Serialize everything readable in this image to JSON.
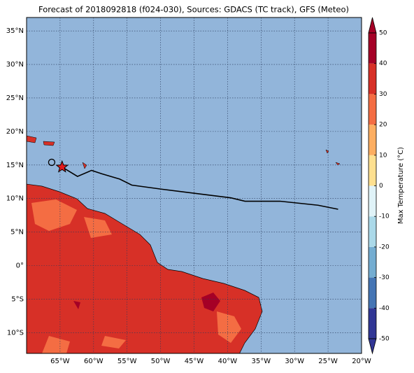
{
  "title": "Forecast of 2018092818 (f024-030), Sources: GDACS (TC track), GFS (Meteo)",
  "map": {
    "xlim": [
      -70,
      -20
    ],
    "ylim": [
      -13.1,
      37
    ],
    "xticks": [
      {
        "value": -65,
        "label": "65°W"
      },
      {
        "value": -60,
        "label": "60°W"
      },
      {
        "value": -55,
        "label": "55°W"
      },
      {
        "value": -50,
        "label": "50°W"
      },
      {
        "value": -45,
        "label": "45°W"
      },
      {
        "value": -40,
        "label": "40°W"
      },
      {
        "value": -35,
        "label": "35°W"
      },
      {
        "value": -30,
        "label": "30°W"
      },
      {
        "value": -25,
        "label": "25°W"
      },
      {
        "value": -20,
        "label": "20°W"
      }
    ],
    "yticks": [
      {
        "value": -10,
        "label": "10°S"
      },
      {
        "value": -5,
        "label": "5°S"
      },
      {
        "value": 0,
        "label": "0°"
      },
      {
        "value": 5,
        "label": "5°N"
      },
      {
        "value": 10,
        "label": "10°N"
      },
      {
        "value": 15,
        "label": "15°N"
      },
      {
        "value": 20,
        "label": "20°N"
      },
      {
        "value": 25,
        "label": "25°N"
      },
      {
        "value": 30,
        "label": "30°N"
      },
      {
        "value": 35,
        "label": "35°N"
      }
    ],
    "grid": true
  },
  "track": {
    "lon": [
      -64.7,
      -62.4,
      -60.3,
      -58.8,
      -56.1,
      -54.3,
      -49.9,
      -39.5,
      -37.4,
      -32.2,
      -26.5,
      -23.5
    ],
    "lat": [
      14.7,
      13.3,
      14.2,
      13.7,
      12.9,
      12.0,
      11.4,
      10.1,
      9.6,
      9.6,
      9.0,
      8.4
    ],
    "color": "#000000"
  },
  "current_position": {
    "lon": -64.7,
    "lat": 14.7,
    "color": "#e41a1c"
  },
  "previous_position": {
    "lon": -66.25,
    "lat": 15.4
  },
  "colorbar": {
    "label": "Max Temperature (°C)",
    "lim": [
      -50,
      50
    ],
    "ticks": [
      -50,
      -40,
      -30,
      -20,
      -10,
      0,
      10,
      20,
      30,
      40,
      50
    ],
    "colors": [
      "#313695",
      "#4575b4",
      "#74add1",
      "#abd9e9",
      "#e0f3f8",
      "#fee090",
      "#fdae61",
      "#f46d43",
      "#d73027",
      "#a50026"
    ]
  }
}
